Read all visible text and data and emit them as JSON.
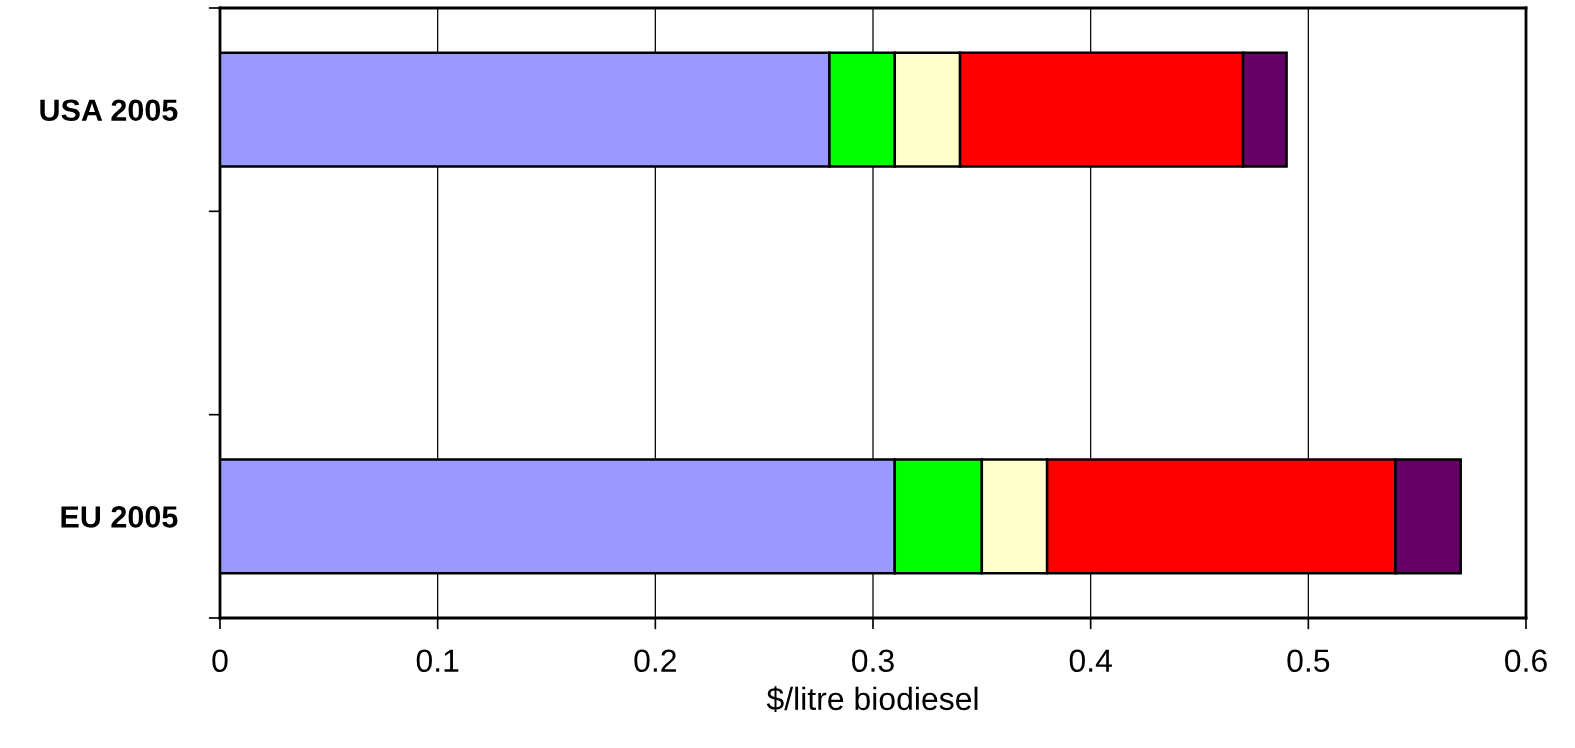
{
  "chart_data": {
    "type": "bar",
    "orientation": "horizontal",
    "stacked": true,
    "categories": [
      "USA 2005",
      null,
      "EU 2005"
    ],
    "xlabel": "$/litre biodiesel",
    "xlim": [
      0,
      0.6
    ],
    "xticks": [
      0,
      0.1,
      0.2,
      0.3,
      0.4,
      0.5,
      0.6
    ],
    "grid": "x",
    "series": [
      {
        "color": "#9999ff",
        "values": [
          0.28,
          null,
          0.31
        ]
      },
      {
        "color": "#00ff00",
        "values": [
          0.03,
          null,
          0.04
        ]
      },
      {
        "color": "#ffffcc",
        "values": [
          0.03,
          null,
          0.03
        ]
      },
      {
        "color": "#ff0000",
        "values": [
          0.13,
          null,
          0.16
        ]
      },
      {
        "color": "#660066",
        "values": [
          0.02,
          null,
          0.03
        ]
      }
    ]
  }
}
